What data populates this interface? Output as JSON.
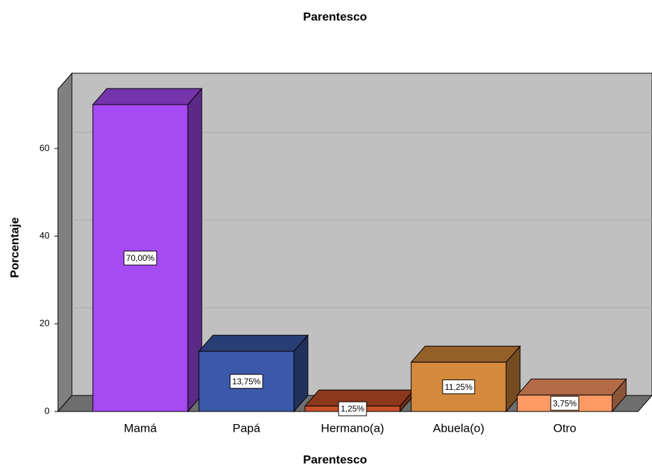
{
  "chart_data": {
    "type": "bar",
    "title": "Parentesco",
    "x_label": "Parentesco",
    "y_label": "Porcentaje",
    "categories": [
      "Mamá",
      "Papá",
      "Hermano(a)",
      "Abuela(o)",
      "Otro"
    ],
    "values": [
      70,
      13.75,
      1.25,
      11.25,
      3.75
    ],
    "value_labels": [
      "70,00%",
      "13,75%",
      "1,25%",
      "11,25%",
      "3,75%"
    ],
    "colors": [
      "#a64af4",
      "#3c59a9",
      "#c8502a",
      "#d4893c",
      "#ff9966"
    ],
    "ylim": [
      0,
      73.5
    ],
    "yticks": [
      0,
      20,
      40,
      60
    ],
    "grid": true
  }
}
